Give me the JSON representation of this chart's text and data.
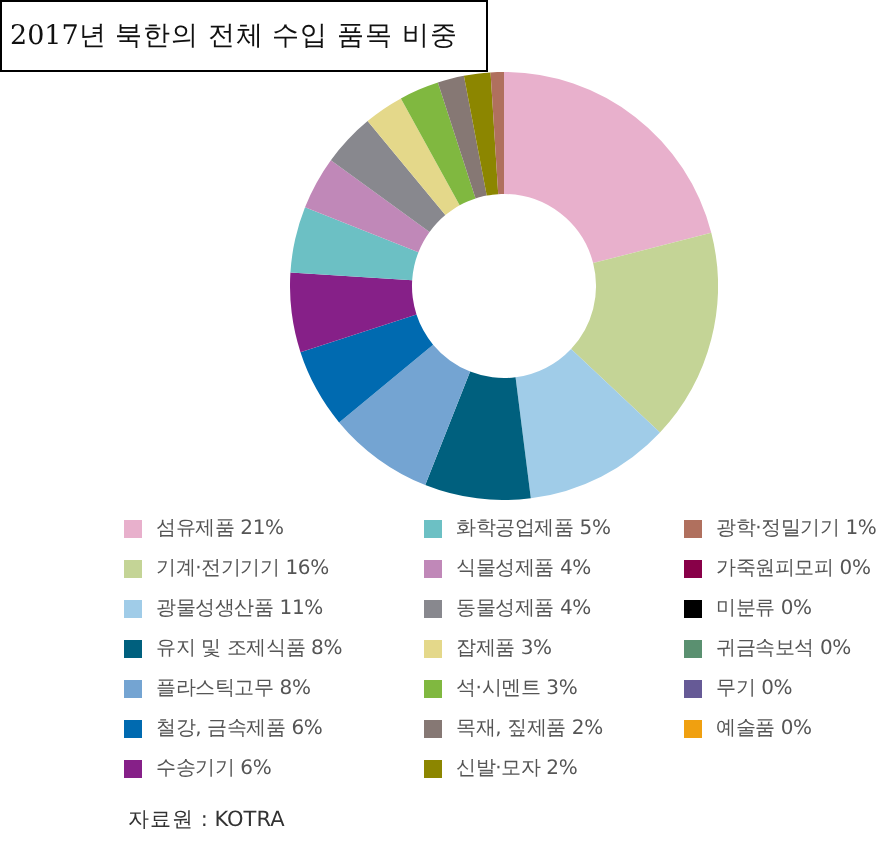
{
  "chart_data": {
    "type": "donut",
    "title": "2017년 북한의 전체 수입 품목 비중",
    "categories": [
      "섬유제품 21%",
      "기계·전기기기 16%",
      "광물성생산품 11%",
      "유지 및 조제식품 8%",
      "플라스틱고무 8%",
      "철강, 금속제품 6%",
      "수송기기 6%",
      "화학공업제품 5%",
      "식물성제품 4%",
      "동물성제품 4%",
      "잡제품 3%",
      "석·시멘트 3%",
      "목재, 짚제품 2%",
      "신발·모자 2%",
      "광학·정밀기기 1%",
      "가죽원피모피 0%",
      "미분류 0%",
      "귀금속보석 0%",
      "무기 0%",
      "예술품 0%"
    ],
    "values": [
      21,
      16,
      11,
      8,
      8,
      6,
      6,
      5,
      4,
      4,
      3,
      3,
      2,
      2,
      1,
      0,
      0,
      0,
      0,
      0
    ],
    "colors": [
      "#e8b0cc",
      "#c4d496",
      "#a0cce8",
      "#00607e",
      "#74a4d2",
      "#006ab0",
      "#862088",
      "#6cc0c4",
      "#c088b8",
      "#88888e",
      "#e4d88a",
      "#80b840",
      "#867874",
      "#8c8600",
      "#b0705e",
      "#880048",
      "#000000",
      "#5a9070",
      "#665a96",
      "#f0a010"
    ],
    "legend": "bottom",
    "annotations": [
      "자료원 : KOTRA"
    ]
  }
}
